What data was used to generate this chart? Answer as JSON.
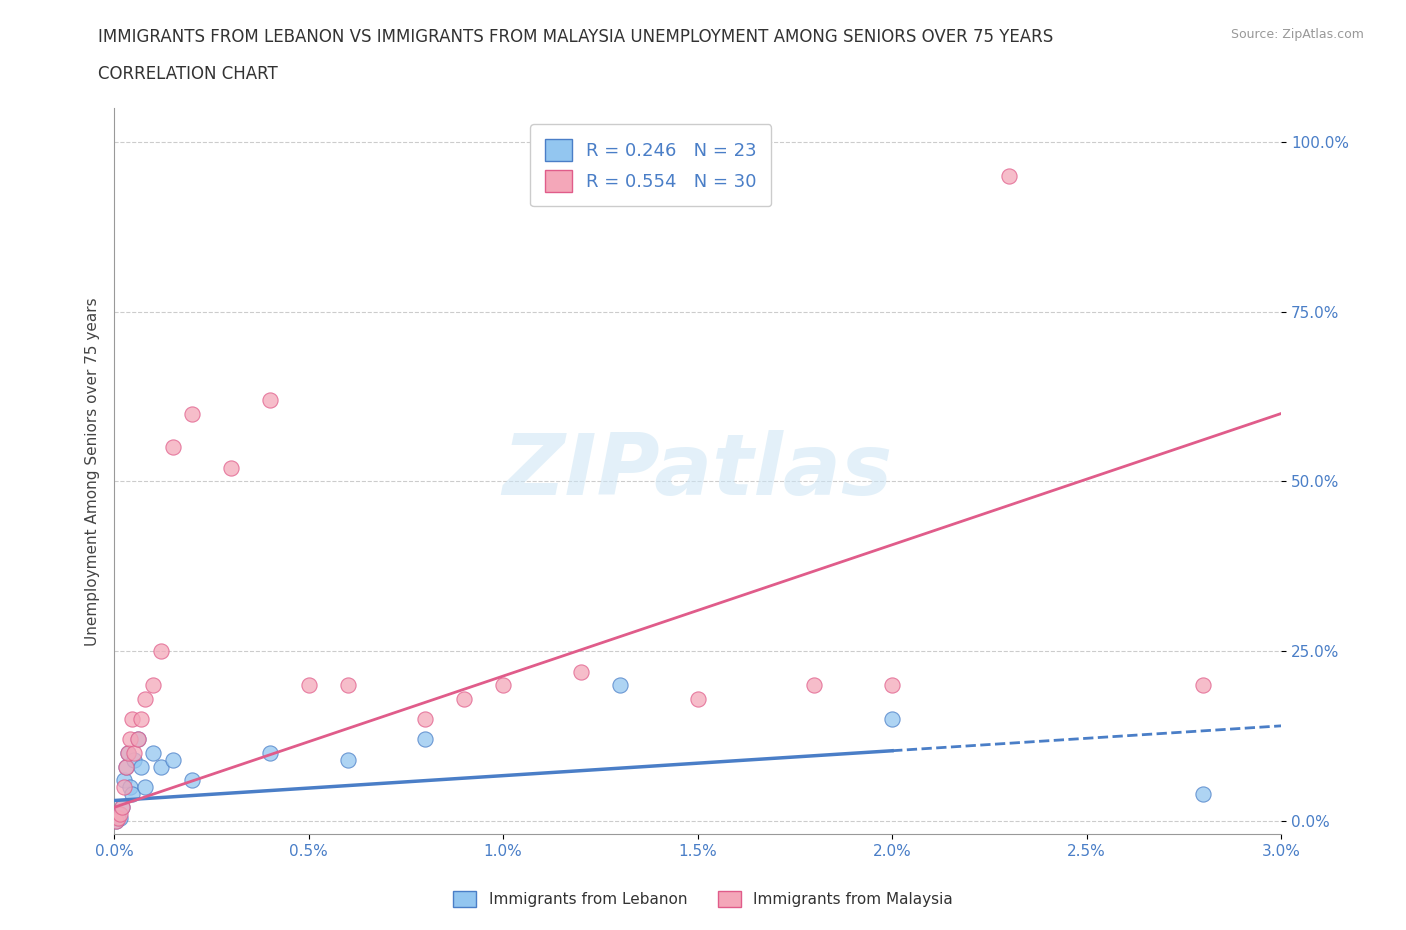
{
  "title_line1": "IMMIGRANTS FROM LEBANON VS IMMIGRANTS FROM MALAYSIA UNEMPLOYMENT AMONG SENIORS OVER 75 YEARS",
  "title_line2": "CORRELATION CHART",
  "source": "Source: ZipAtlas.com",
  "ylabel": "Unemployment Among Seniors over 75 years",
  "watermark": "ZIPatlas",
  "color_lebanon": "#93C6F0",
  "color_malaysia": "#F4A7B9",
  "line_color_lebanon": "#4A7EC7",
  "line_color_malaysia": "#E05C8A",
  "R_lebanon": 0.246,
  "N_lebanon": 23,
  "R_malaysia": 0.554,
  "N_malaysia": 30,
  "legend_label_lebanon": "Immigrants from Lebanon",
  "legend_label_malaysia": "Immigrants from Malaysia",
  "xlim": [
    0.0,
    0.03
  ],
  "ylim": [
    -0.02,
    1.05
  ],
  "xticks": [
    0.0,
    0.005,
    0.01,
    0.015,
    0.02,
    0.025,
    0.03
  ],
  "xticklabels": [
    "0.0%",
    "0.5%",
    "1.0%",
    "1.5%",
    "2.0%",
    "2.5%",
    "3.0%"
  ],
  "yticks": [
    0.0,
    0.25,
    0.5,
    0.75,
    1.0
  ],
  "yticklabels": [
    "0.0%",
    "25.0%",
    "50.0%",
    "75.0%",
    "100.0%"
  ],
  "lb_x": [
    5e-05,
    0.0001,
    0.00015,
    0.0002,
    0.00025,
    0.0003,
    0.00035,
    0.0004,
    0.00045,
    0.0005,
    0.0006,
    0.0007,
    0.0008,
    0.001,
    0.0012,
    0.0015,
    0.002,
    0.004,
    0.006,
    0.008,
    0.013,
    0.02,
    0.028
  ],
  "lb_y": [
    0.0,
    0.01,
    0.005,
    0.02,
    0.06,
    0.08,
    0.1,
    0.05,
    0.04,
    0.09,
    0.12,
    0.08,
    0.05,
    0.1,
    0.08,
    0.09,
    0.06,
    0.1,
    0.09,
    0.12,
    0.2,
    0.15,
    0.04
  ],
  "ml_x": [
    5e-05,
    0.0001,
    0.00015,
    0.0002,
    0.00025,
    0.0003,
    0.00035,
    0.0004,
    0.00045,
    0.0005,
    0.0006,
    0.0007,
    0.0008,
    0.001,
    0.0012,
    0.0015,
    0.002,
    0.003,
    0.004,
    0.005,
    0.006,
    0.008,
    0.009,
    0.01,
    0.012,
    0.015,
    0.018,
    0.02,
    0.023,
    0.028
  ],
  "ml_y": [
    0.0,
    0.005,
    0.01,
    0.02,
    0.05,
    0.08,
    0.1,
    0.12,
    0.15,
    0.1,
    0.12,
    0.15,
    0.18,
    0.2,
    0.25,
    0.55,
    0.6,
    0.52,
    0.62,
    0.2,
    0.2,
    0.15,
    0.18,
    0.2,
    0.22,
    0.18,
    0.2,
    0.2,
    0.95,
    0.2
  ]
}
